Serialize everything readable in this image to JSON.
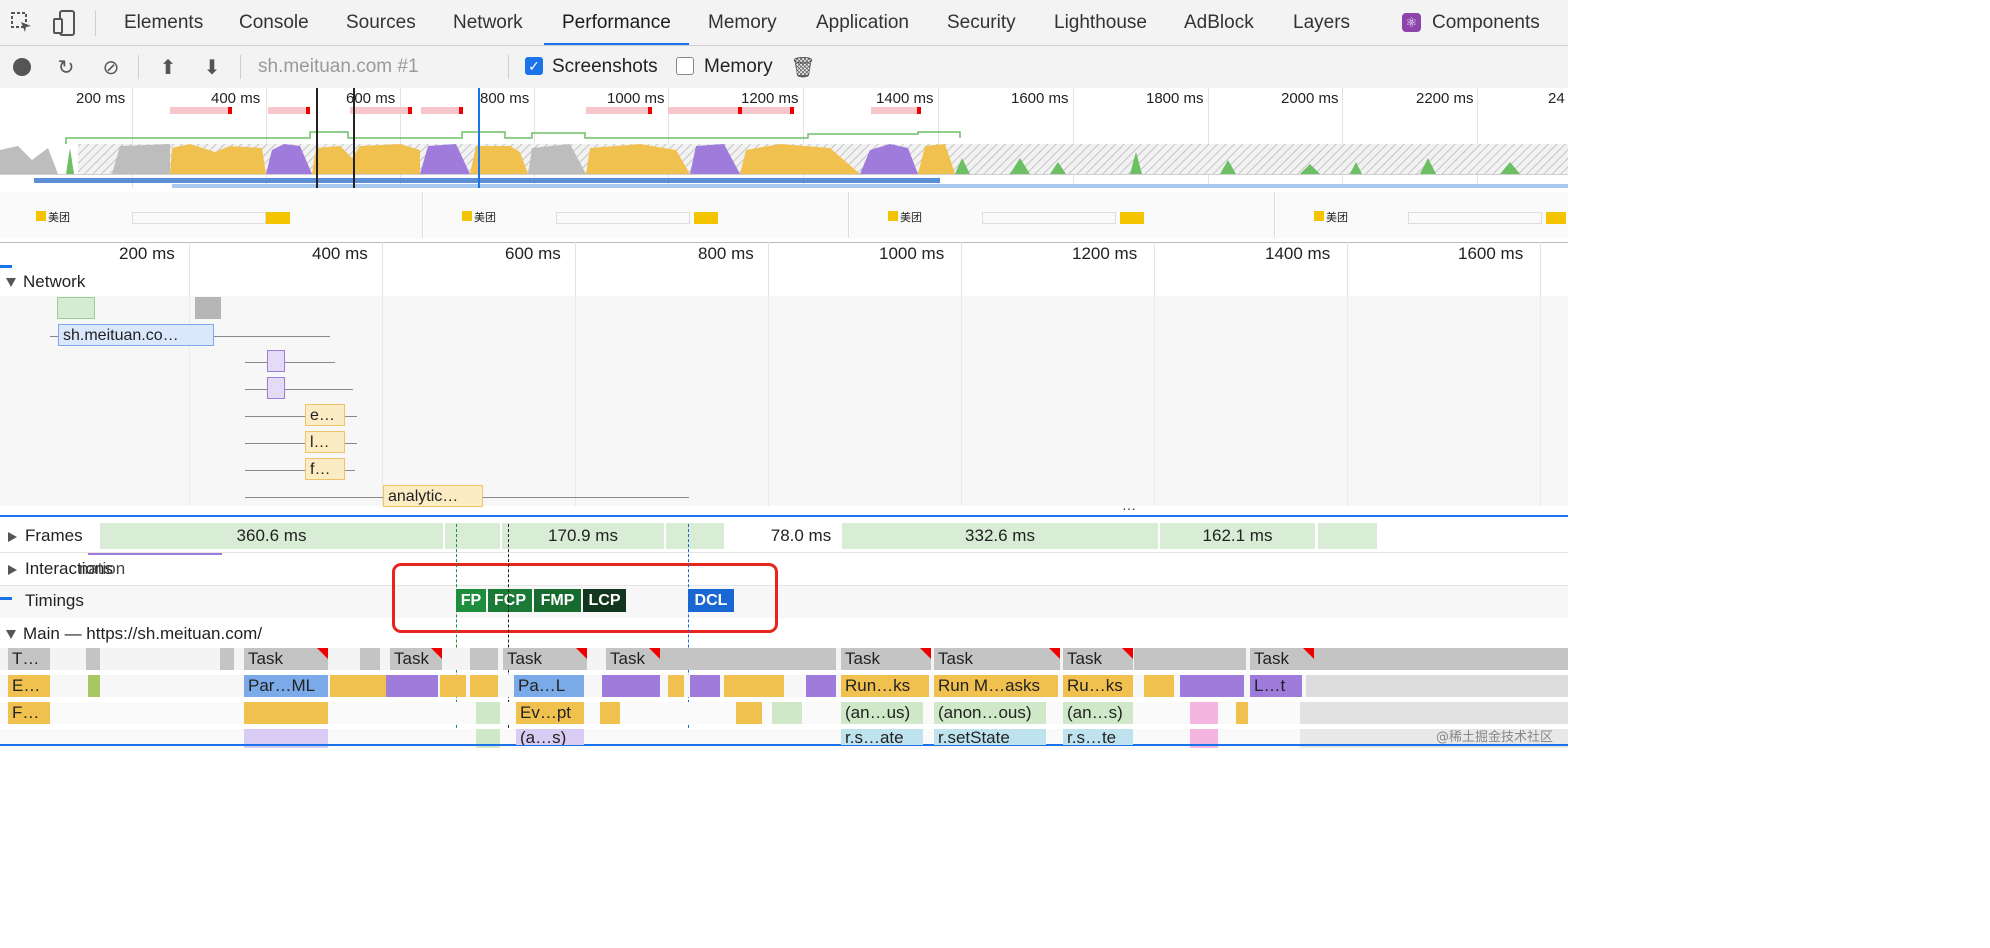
{
  "tabs": [
    "Elements",
    "Console",
    "Sources",
    "Network",
    "Performance",
    "Memory",
    "Application",
    "Security",
    "Lighthouse",
    "AdBlock",
    "Layers",
    "Components"
  ],
  "active_tab": "Performance",
  "toolbar": {
    "profile_select": "sh.meituan.com #1",
    "screenshots_label": "Screenshots",
    "screenshots_checked": true,
    "memory_label": "Memory",
    "memory_checked": false
  },
  "overview": {
    "ticks": [
      "200 ms",
      "400 ms",
      "600 ms",
      "800 ms",
      "1000 ms",
      "1200 ms",
      "1400 ms",
      "1600 ms",
      "1800 ms",
      "2000 ms",
      "2200 ms",
      "24"
    ],
    "screenshot_brand": "美团"
  },
  "ruler": {
    "ticks": [
      "200 ms",
      "400 ms",
      "600 ms",
      "800 ms",
      "1000 ms",
      "1200 ms",
      "1400 ms",
      "1600 ms"
    ]
  },
  "network": {
    "label": "Network",
    "requests": [
      "sh.meituan.co…",
      "e…",
      "l…",
      "f…",
      "analytic…"
    ]
  },
  "frames": {
    "label": "Frames",
    "durations": [
      "360.6 ms",
      "170.9 ms",
      "78.0 ms",
      "332.6 ms",
      "162.1 ms"
    ]
  },
  "interactions": {
    "label": "Interactions",
    "overlay_text": "nation"
  },
  "timings": {
    "label": "Timings",
    "markers": [
      "FP",
      "FCP",
      "FMP",
      "LCP",
      "DCL"
    ],
    "colors": {
      "FP": "#1e8e3e",
      "FCP": "#1b7a36",
      "FMP": "#176b2f",
      "LCP": "#12361e",
      "DCL": "#1967d2"
    }
  },
  "main": {
    "label": "Main — https://sh.meituan.com/",
    "row1": [
      "T…",
      "Task",
      "Task",
      "Task",
      "Task",
      "Task",
      "Task",
      "Task",
      "Task"
    ],
    "row2": [
      "E…",
      "Par…ML",
      "Pa…L",
      "Run…ks",
      "Run M…asks",
      "Ru…ks",
      "L…t"
    ],
    "row3": [
      "F…",
      "Ev…pt",
      "(an…us)",
      "(anon…ous)",
      "(an…s)"
    ],
    "row4": [
      "(a…s)",
      "r.s…ate",
      "r.setState",
      "r.s…te"
    ]
  },
  "more_indicator": "···",
  "watermark": "@稀土掘金技术社区"
}
